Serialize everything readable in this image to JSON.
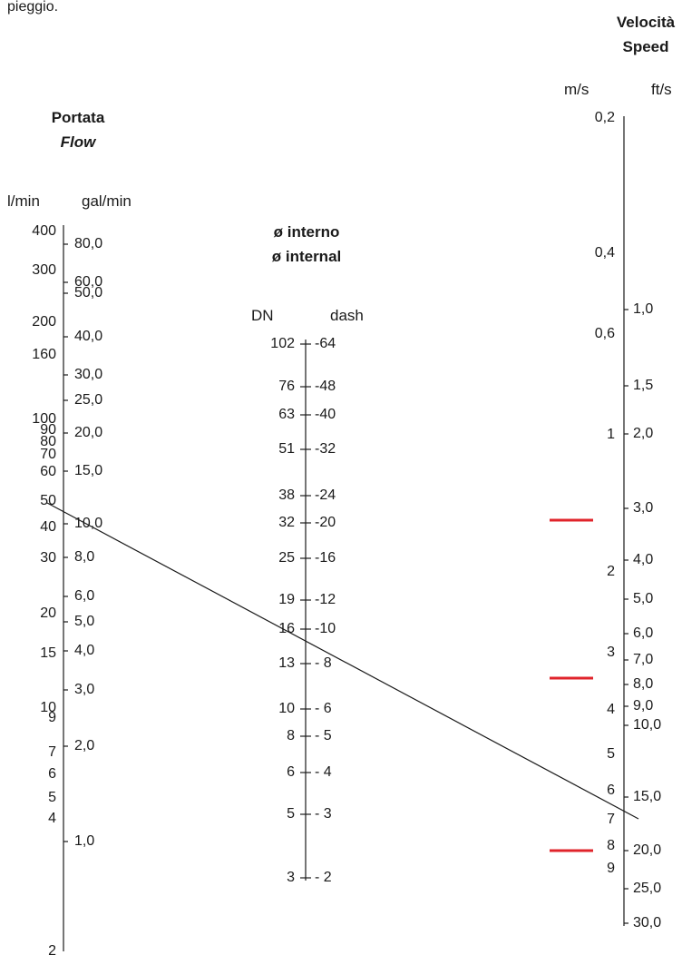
{
  "top_fragment": "pieggio.",
  "flow": {
    "title": "Portata",
    "subtitle": "Flow",
    "unit_left": "l/min",
    "unit_right": "gal/min",
    "left_ticks": [
      "400",
      "300",
      "200",
      "160",
      "100",
      "90",
      "80",
      "70",
      "60",
      "50",
      "40",
      "30",
      "20",
      "15",
      "10",
      "9",
      "7",
      "6",
      "5",
      "4",
      "2"
    ],
    "right_ticks": [
      "80,0",
      "60,0",
      "50,0",
      "40,0",
      "30,0",
      "25,0",
      "20,0",
      "15,0",
      "10,0",
      "8,0",
      "6,0",
      "5,0",
      "4,0",
      "3,0",
      "2,0",
      "1,0"
    ]
  },
  "diameter": {
    "title": "ø interno",
    "subtitle": "ø internal",
    "unit_left": "DN",
    "unit_right": "dash",
    "left_ticks": [
      "102",
      "76",
      "63",
      "51",
      "38",
      "32",
      "25",
      "19",
      "16",
      "13",
      "10",
      "8",
      "6",
      "5",
      "3"
    ],
    "right_ticks": [
      "-64",
      "-48",
      "-40",
      "-32",
      "-24",
      "-20",
      "-16",
      "-12",
      "-10",
      "- 8",
      "- 6",
      "- 5",
      "- 4",
      "- 3",
      "- 2"
    ]
  },
  "speed": {
    "title": "Velocità",
    "subtitle": "Speed",
    "unit_left": "m/s",
    "unit_right": "ft/s",
    "left_ticks": [
      "0,2",
      "0,4",
      "0,6",
      "1",
      "2",
      "3",
      "4",
      "5",
      "6",
      "7",
      "8",
      "9"
    ],
    "right_ticks": [
      "1,0",
      "1,5",
      "2,0",
      "3,0",
      "4,0",
      "5,0",
      "6,0",
      "7,0",
      "8,0",
      "9,0",
      "10,0",
      "15,0",
      "20,0",
      "25,0",
      "30,0"
    ]
  },
  "colors": {
    "line": "#1a1a1a",
    "marker": "#e0242b"
  }
}
